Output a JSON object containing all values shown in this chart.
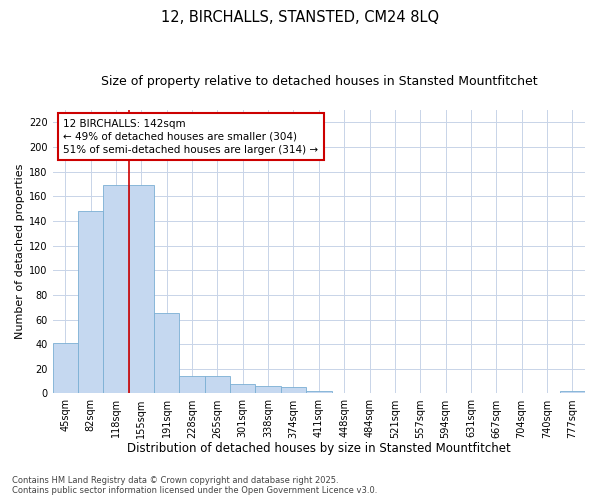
{
  "title": "12, BIRCHALLS, STANSTED, CM24 8LQ",
  "subtitle": "Size of property relative to detached houses in Stansted Mountfitchet",
  "xlabel": "Distribution of detached houses by size in Stansted Mountfitchet",
  "ylabel": "Number of detached properties",
  "categories": [
    "45sqm",
    "82sqm",
    "118sqm",
    "155sqm",
    "191sqm",
    "228sqm",
    "265sqm",
    "301sqm",
    "338sqm",
    "374sqm",
    "411sqm",
    "448sqm",
    "484sqm",
    "521sqm",
    "557sqm",
    "594sqm",
    "631sqm",
    "667sqm",
    "704sqm",
    "740sqm",
    "777sqm"
  ],
  "values": [
    41,
    148,
    169,
    169,
    65,
    14,
    14,
    8,
    6,
    5,
    2,
    0,
    0,
    0,
    0,
    0,
    0,
    0,
    0,
    0,
    2
  ],
  "bar_color": "#c5d8f0",
  "bar_edge_color": "#7bafd4",
  "vline_x": 2.5,
  "vline_color": "#cc0000",
  "annotation_text": "12 BIRCHALLS: 142sqm\n← 49% of detached houses are smaller (304)\n51% of semi-detached houses are larger (314) →",
  "annotation_box_facecolor": "#ffffff",
  "annotation_box_edgecolor": "#cc0000",
  "ylim": [
    0,
    230
  ],
  "yticks": [
    0,
    20,
    40,
    60,
    80,
    100,
    120,
    140,
    160,
    180,
    200,
    220
  ],
  "grid_color": "#c8d4e8",
  "plot_bg_color": "#ffffff",
  "fig_bg_color": "#ffffff",
  "footer": "Contains HM Land Registry data © Crown copyright and database right 2025.\nContains public sector information licensed under the Open Government Licence v3.0.",
  "title_fontsize": 10.5,
  "subtitle_fontsize": 9,
  "xlabel_fontsize": 8.5,
  "ylabel_fontsize": 8,
  "tick_fontsize": 7,
  "annotation_fontsize": 7.5,
  "footer_fontsize": 6
}
